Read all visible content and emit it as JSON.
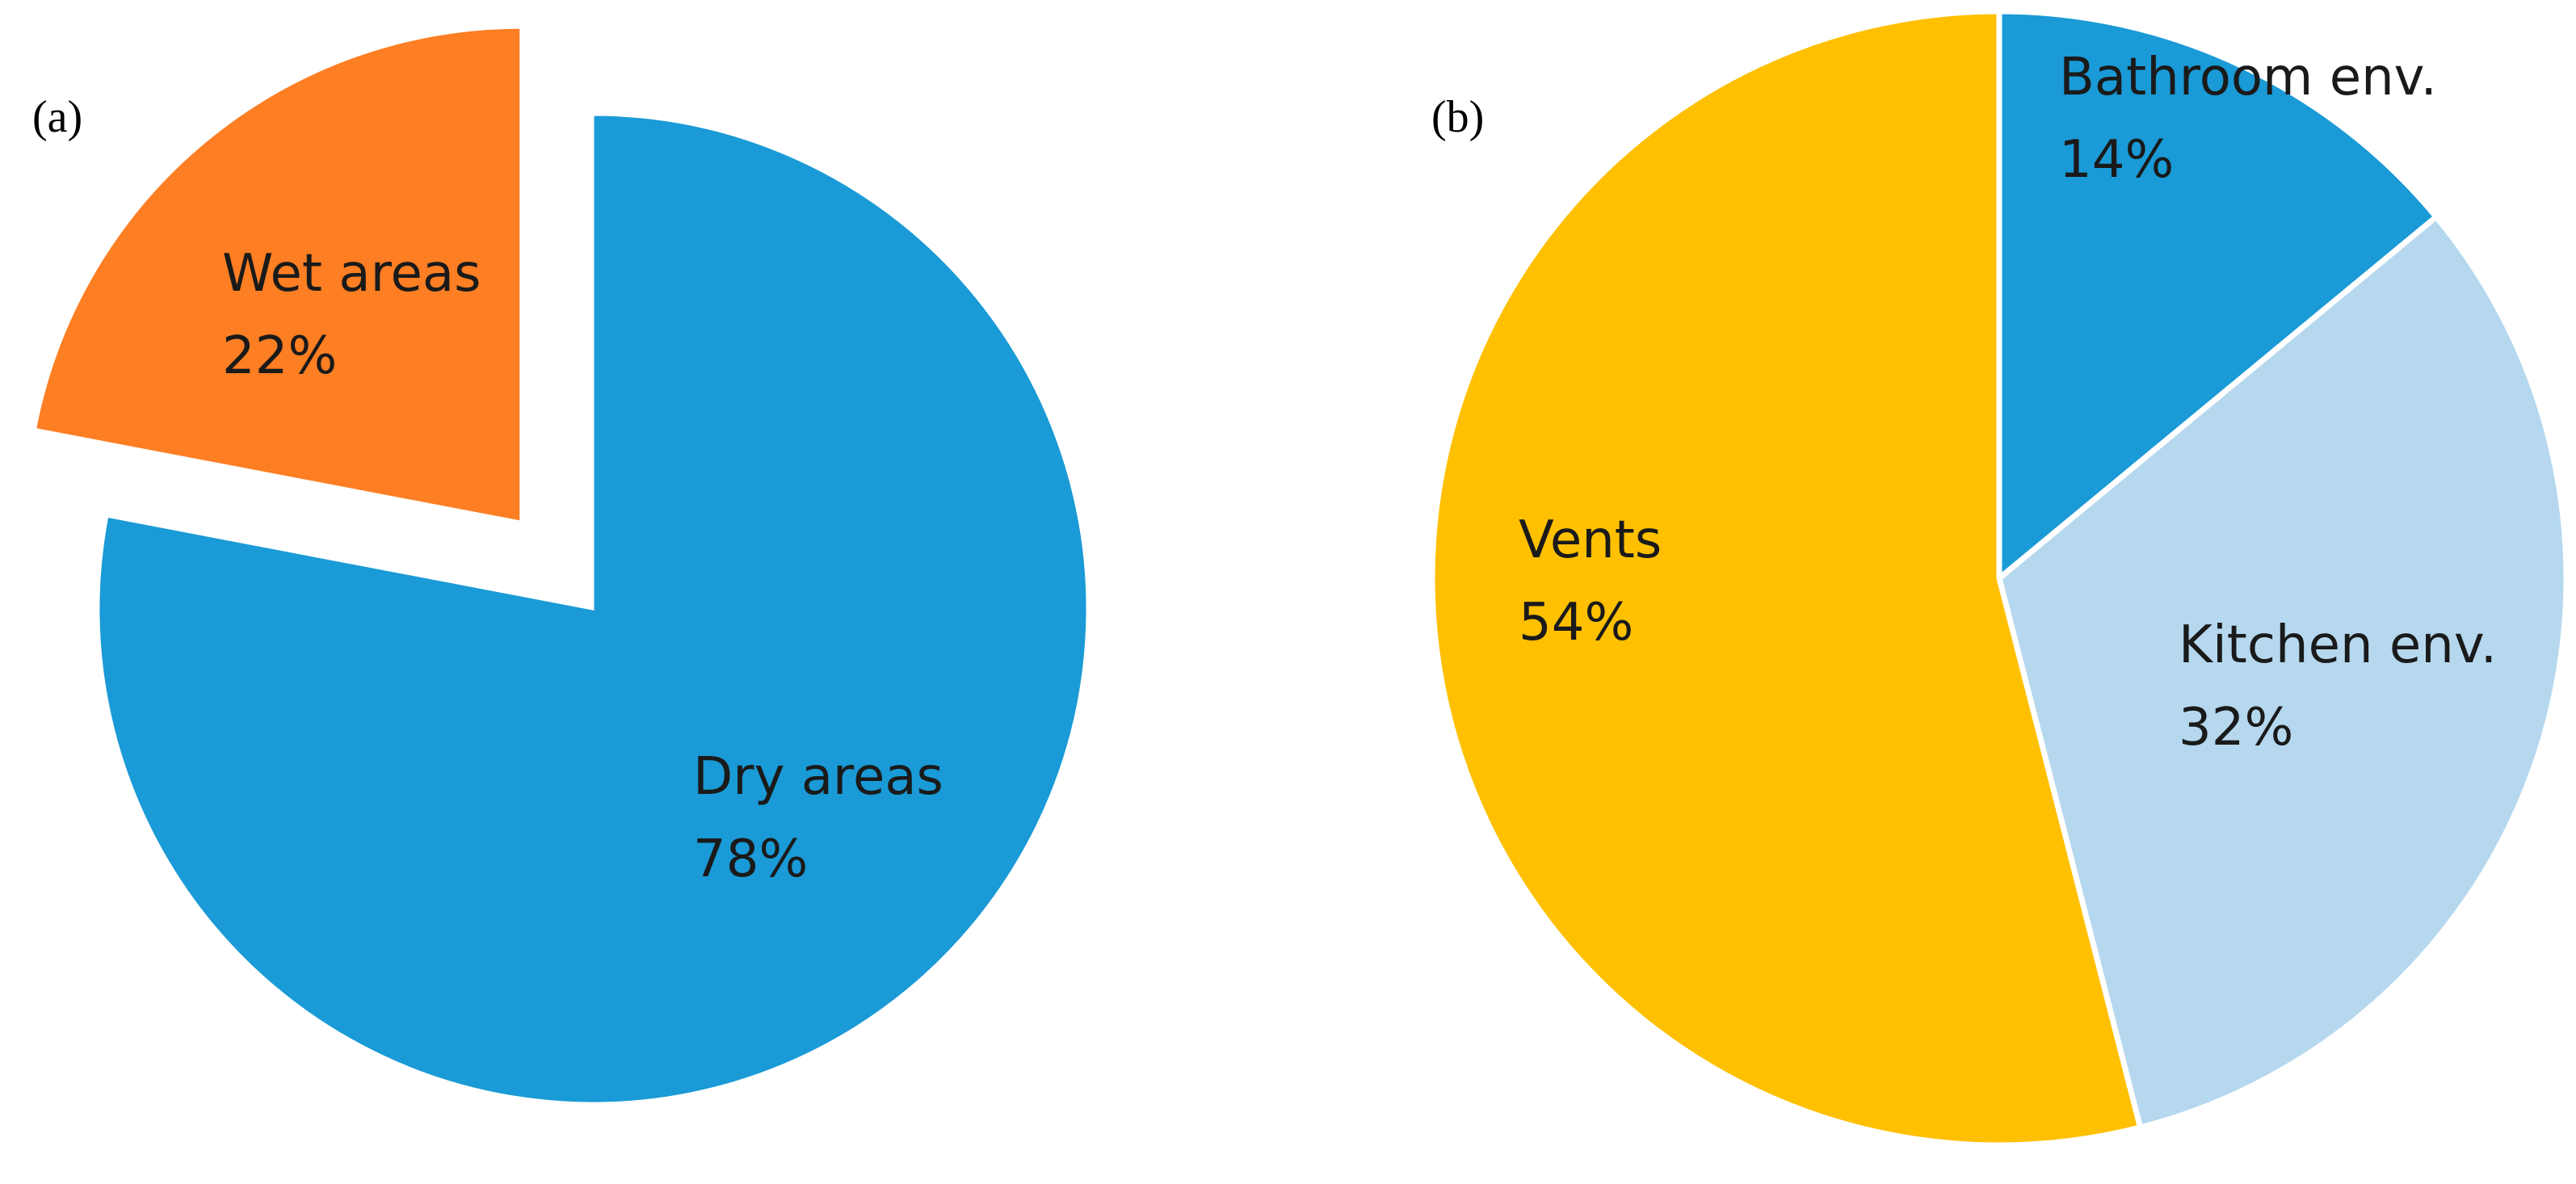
{
  "chart_data": [
    {
      "type": "pie",
      "panel_label": "(a)",
      "title": "",
      "exploded": true,
      "slices": [
        {
          "label": "Dry areas",
          "value": 78,
          "value_label": "78%",
          "color": "#1a9ad6"
        },
        {
          "label": "Wet areas",
          "value": 22,
          "value_label": "22%",
          "color": "#fd7e23"
        }
      ]
    },
    {
      "type": "pie",
      "panel_label": "(b)",
      "title": "",
      "exploded": false,
      "slices": [
        {
          "label": "Bathroom env.",
          "value": 14,
          "value_label": "14%",
          "color": "#1a9ad6"
        },
        {
          "label": "Kitchen env.",
          "value": 32,
          "value_label": "32%",
          "color": "#b5d8ef"
        },
        {
          "label": "Vents",
          "value": 54,
          "value_label": "54%",
          "color": "#fec000"
        }
      ]
    }
  ]
}
